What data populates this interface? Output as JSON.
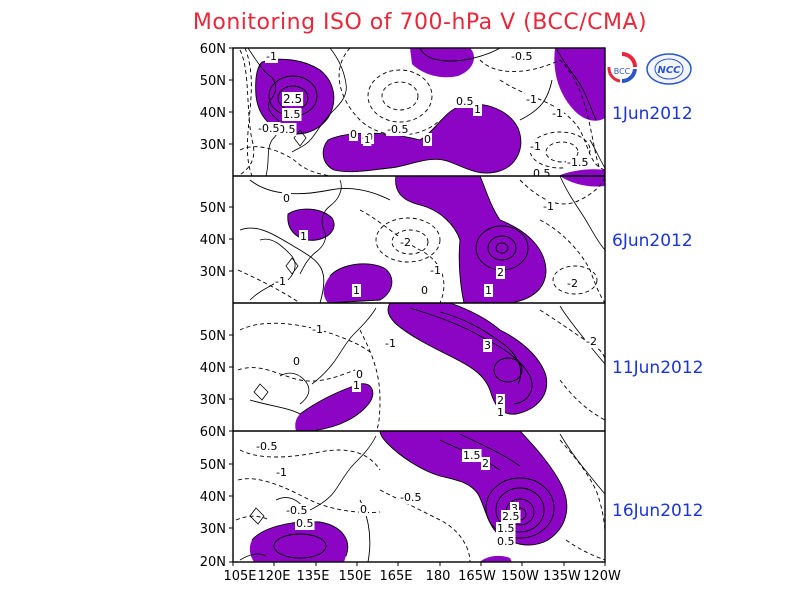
{
  "title": "Monitoring ISO of 700-hPa V (BCC/CMA)",
  "logos": [
    {
      "name": "bcc-logo",
      "text": "BCC"
    },
    {
      "name": "ncc-logo",
      "text": "NCC"
    }
  ],
  "x_ticks": [
    "105E",
    "120E",
    "135E",
    "150E",
    "165E",
    "180",
    "165W",
    "150W",
    "135W",
    "120W"
  ],
  "panels": [
    {
      "date": "1Jun2012",
      "lat_ticks": [
        "60N",
        "50N",
        "40N",
        "30N"
      ],
      "labels": [
        "-1",
        "2.5",
        "1.5",
        "0.5",
        "-0.5",
        "0",
        "-0",
        "1",
        "-0.5",
        "0",
        "0.5",
        "1",
        "-1",
        "-0.5",
        "-1",
        "-1",
        "-1.5",
        "0.5"
      ]
    },
    {
      "date": "6Jun2012",
      "lat_ticks": [
        "50N",
        "40N",
        "30N"
      ],
      "labels": [
        "0",
        "1",
        "-2",
        "-1",
        "-1",
        "0",
        "2",
        "1",
        "1",
        "-1",
        "-2"
      ]
    },
    {
      "date": "11Jun2012",
      "lat_ticks": [
        "50N",
        "40N",
        "30N"
      ],
      "labels": [
        "-1",
        "0",
        "0",
        "-1",
        "1",
        "3",
        "2",
        "1",
        "-2"
      ]
    },
    {
      "date": "16Jun2012",
      "lat_ticks": [
        "60N",
        "50N",
        "40N",
        "30N",
        "20N"
      ],
      "labels": [
        "-0.5",
        "-1",
        "-0.5",
        "0.5",
        "0",
        "-0.5",
        "1.5",
        "2",
        "3",
        "2.5",
        "1.5",
        "0.5"
      ]
    }
  ],
  "colors": {
    "title": "#e8283a",
    "date": "#1a34d6",
    "shading": "#8d05c4",
    "contour": "#000000"
  }
}
